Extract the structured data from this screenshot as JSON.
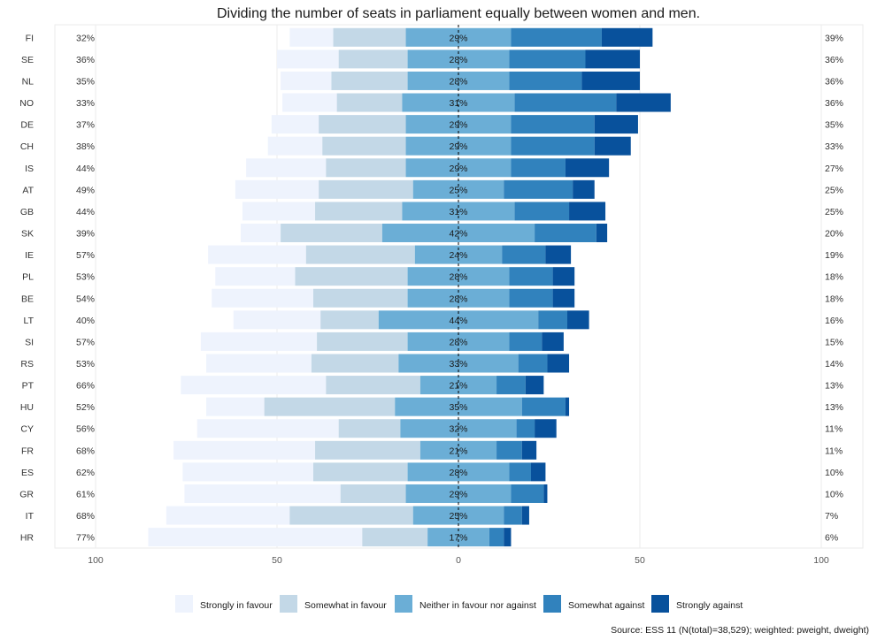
{
  "chart_data": {
    "type": "bar",
    "subtype": "diverging-stacked-horizontal",
    "title": "Dividing the number of seats in parliament equally between women and men.",
    "source": "Source: ESS 11 (N(total)=38,529); weighted: pweight, dweight)",
    "xlim": [
      -100,
      100
    ],
    "xticks": [
      {
        "value": -100,
        "label": "100"
      },
      {
        "value": -50,
        "label": "50"
      },
      {
        "value": 0,
        "label": "0"
      },
      {
        "value": 50,
        "label": "50"
      },
      {
        "value": 100,
        "label": "100"
      }
    ],
    "categories_legend": [
      "Strongly in favour",
      "Somewhat in favour",
      "Neither in favour nor against",
      "Somewhat against",
      "Strongly against"
    ],
    "colors": [
      "#eef3fd",
      "#c3d8e7",
      "#6baed6",
      "#3182bd",
      "#08519c"
    ],
    "countries": [
      "FI",
      "SE",
      "NL",
      "NO",
      "DE",
      "CH",
      "IS",
      "AT",
      "GB",
      "SK",
      "IE",
      "PL",
      "BE",
      "LT",
      "SI",
      "RS",
      "PT",
      "HU",
      "CY",
      "FR",
      "ES",
      "GR",
      "IT",
      "HR"
    ],
    "favour_labels": [
      "32%",
      "36%",
      "35%",
      "33%",
      "37%",
      "38%",
      "44%",
      "49%",
      "44%",
      "39%",
      "57%",
      "53%",
      "54%",
      "40%",
      "57%",
      "53%",
      "66%",
      "52%",
      "56%",
      "68%",
      "62%",
      "61%",
      "68%",
      "77%"
    ],
    "against_labels": [
      "39%",
      "36%",
      "36%",
      "36%",
      "35%",
      "33%",
      "27%",
      "25%",
      "25%",
      "20%",
      "19%",
      "18%",
      "18%",
      "16%",
      "15%",
      "14%",
      "13%",
      "13%",
      "11%",
      "11%",
      "10%",
      "10%",
      "7%",
      "6%"
    ],
    "neutral_labels": [
      "29%",
      "28%",
      "28%",
      "31%",
      "29%",
      "29%",
      "29%",
      "25%",
      "31%",
      "42%",
      "24%",
      "28%",
      "28%",
      "44%",
      "28%",
      "33%",
      "21%",
      "35%",
      "32%",
      "21%",
      "28%",
      "29%",
      "25%",
      "17%"
    ],
    "series": [
      {
        "name": "Strongly in favour",
        "values": [
          12,
          17,
          14,
          15,
          13,
          15,
          22,
          23,
          20,
          11,
          27,
          22,
          28,
          24,
          32,
          29,
          40,
          16,
          39,
          39,
          36,
          43,
          34,
          59
        ]
      },
      {
        "name": "Somewhat in favour",
        "values": [
          20,
          19,
          21,
          18,
          24,
          23,
          22,
          26,
          24,
          28,
          30,
          31,
          26,
          16,
          25,
          24,
          26,
          36,
          17,
          29,
          26,
          18,
          34,
          18
        ]
      },
      {
        "name": "Neither in favour nor against",
        "values": [
          29,
          28,
          28,
          31,
          29,
          29,
          29,
          25,
          31,
          42,
          24,
          28,
          28,
          44,
          28,
          33,
          21,
          35,
          32,
          21,
          28,
          29,
          25,
          17
        ]
      },
      {
        "name": "Somewhat against",
        "values": [
          25,
          21,
          20,
          28,
          23,
          23,
          15,
          19,
          15,
          17,
          12,
          12,
          12,
          8,
          9,
          8,
          8,
          12,
          5,
          7,
          6,
          9,
          5,
          4
        ]
      },
      {
        "name": "Strongly against",
        "values": [
          14,
          15,
          16,
          15,
          12,
          10,
          12,
          6,
          10,
          3,
          7,
          6,
          6,
          6,
          6,
          6,
          5,
          1,
          6,
          4,
          4,
          1,
          2,
          2
        ]
      }
    ]
  }
}
